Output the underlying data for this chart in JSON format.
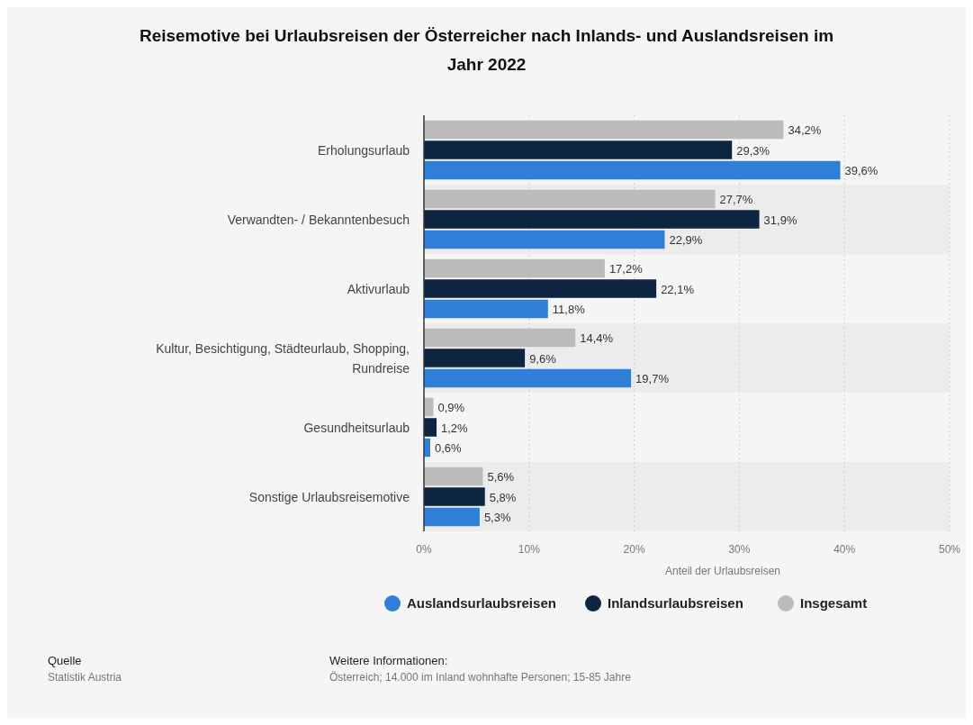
{
  "chart_data": {
    "type": "bar",
    "orientation": "horizontal",
    "title": "Reisemotive bei Urlaubsreisen der Österreicher nach Inlands- und Auslandsreisen im Jahr 2022",
    "xlabel": "Anteil der Urlaubsreisen",
    "categories": [
      "Erholungsurlaub",
      "Verwandten- / Bekanntenbesuch",
      "Aktivurlaub",
      "Kultur, Besichtigung, Städteurlaub, Shopping, Rundreise",
      "Gesundheitsurlaub",
      "Sonstige Urlaubsreisemotive"
    ],
    "series": [
      {
        "name": "Auslandsurlaubsreisen",
        "color": "#2f7ed8",
        "values": [
          39.6,
          22.9,
          11.8,
          19.7,
          0.6,
          5.3
        ],
        "value_labels": [
          "39,6%",
          "22,9%",
          "11,8%",
          "19,7%",
          "0,6%",
          "5,3%"
        ]
      },
      {
        "name": "Inlandsurlaubsreisen",
        "color": "#0d2541",
        "values": [
          29.3,
          31.9,
          22.1,
          9.6,
          1.2,
          5.8
        ],
        "value_labels": [
          "29,3%",
          "31,9%",
          "22,1%",
          "9,6%",
          "1,2%",
          "5,8%"
        ]
      },
      {
        "name": "Insgesamt",
        "color": "#bbbbbb",
        "values": [
          34.2,
          27.7,
          17.2,
          14.4,
          0.9,
          5.6
        ],
        "value_labels": [
          "34,2%",
          "27,7%",
          "17,2%",
          "14,4%",
          "0,9%",
          "5,6%"
        ]
      }
    ],
    "xlim": [
      0,
      50
    ],
    "xticks": [
      {
        "value": 0,
        "label": "0%"
      },
      {
        "value": 10,
        "label": "10%"
      },
      {
        "value": 20,
        "label": "20%"
      },
      {
        "value": 30,
        "label": "30%"
      },
      {
        "value": 40,
        "label": "40%"
      },
      {
        "value": 50,
        "label": "50%"
      }
    ],
    "grid": "x",
    "legend": "bottom",
    "annotations": [
      "Quelle",
      "Statistik Austria",
      "Weitere Informationen:",
      "Österreich; 14.000 im Inland wohnhafte Personen; 15-85 Jahre"
    ]
  }
}
